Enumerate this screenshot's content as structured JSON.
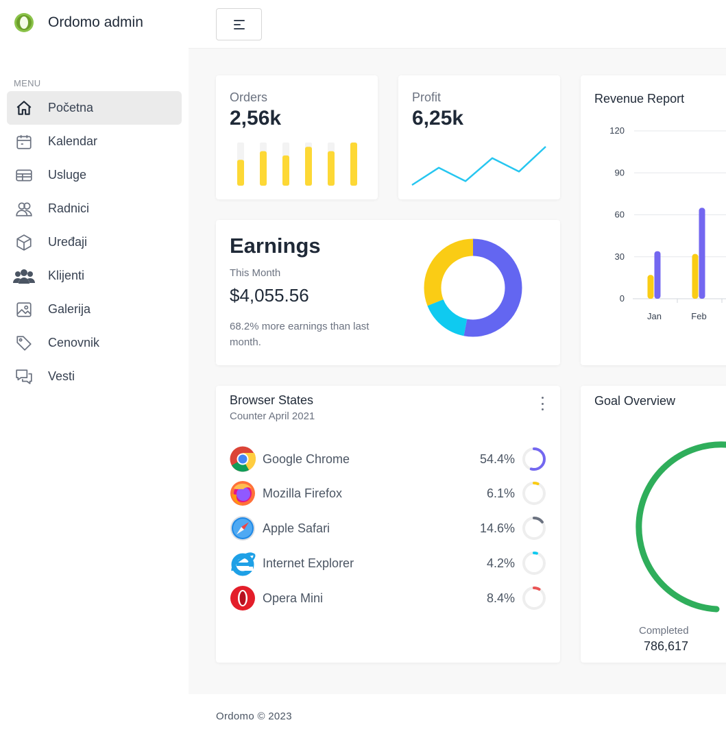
{
  "brand": {
    "name": "Ordomo admin",
    "logo_icon": "lime-drop-logo"
  },
  "sidebar": {
    "caption": "MENU",
    "items": [
      {
        "label": "Početna",
        "icon": "home-icon",
        "active": true
      },
      {
        "label": "Kalendar",
        "icon": "calendar-icon"
      },
      {
        "label": "Usluge",
        "icon": "table-icon"
      },
      {
        "label": "Radnici",
        "icon": "users-icon"
      },
      {
        "label": "Uređaji",
        "icon": "cube-icon"
      },
      {
        "label": "Klijenti",
        "icon": "group-icon"
      },
      {
        "label": "Galerija",
        "icon": "image-icon"
      },
      {
        "label": "Cenovnik",
        "icon": "tag-icon"
      },
      {
        "label": "Vesti",
        "icon": "chat-icon"
      }
    ]
  },
  "orders": {
    "label": "Orders",
    "value": "2,56k",
    "color": "#fdd835",
    "track_color": "#f3f3f3",
    "bars": [
      0.6,
      0.8,
      0.7,
      0.9,
      0.8,
      1.0
    ]
  },
  "profit": {
    "label": "Profit",
    "value": "6,25k",
    "color": "#26c6f0",
    "points": [
      0,
      0.45,
      0.1,
      0.7,
      0.35,
      1.0
    ]
  },
  "earnings": {
    "title": "Earnings",
    "subtitle": "This Month",
    "amount": "$4,055.56",
    "note": "68.2% more earnings than last month.",
    "donut": [
      {
        "value": 53,
        "color": "#6366f1"
      },
      {
        "value": 16,
        "color": "#0fcaf0"
      },
      {
        "value": 31,
        "color": "#facc15"
      }
    ]
  },
  "revenue": {
    "title": "Revenue Report"
  },
  "chart_data": {
    "type": "bar",
    "categories": [
      "Jan",
      "Feb"
    ],
    "series": [
      {
        "values": [
          17,
          32
        ],
        "color": "#facc15"
      },
      {
        "values": [
          34,
          65
        ],
        "color": "#7367f0"
      }
    ],
    "yticks": [
      0,
      30,
      60,
      90,
      120
    ],
    "ylim": [
      0,
      120
    ],
    "grid": true
  },
  "browser": {
    "title": "Browser States",
    "subtitle": "Counter April 2021",
    "rows": [
      {
        "name": "Google Chrome",
        "pct": "54.4%",
        "value": 0.544,
        "logo": "chrome-icon",
        "ring_color": "#7367f0"
      },
      {
        "name": "Mozilla Firefox",
        "pct": "6.1%",
        "value": 0.061,
        "logo": "firefox-icon",
        "ring_color": "#facc15"
      },
      {
        "name": "Apple Safari",
        "pct": "14.6%",
        "value": 0.146,
        "logo": "safari-icon",
        "ring_color": "#6b7280"
      },
      {
        "name": "Internet Explorer",
        "pct": "4.2%",
        "value": 0.042,
        "logo": "ie-icon",
        "ring_color": "#0fcaf0"
      },
      {
        "name": "Opera Mini",
        "pct": "8.4%",
        "value": 0.084,
        "logo": "opera-icon",
        "ring_color": "#ea5455"
      }
    ]
  },
  "goal": {
    "title": "Goal Overview",
    "completed_label": "Completed",
    "completed_value": "786,617",
    "arc_color": "#2fae5b"
  },
  "footer": {
    "text": "Ordomo © 2023"
  }
}
